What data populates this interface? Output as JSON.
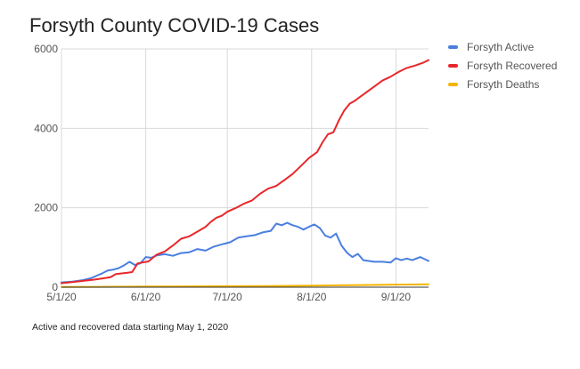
{
  "title": "Forsyth County COVID-19 Cases",
  "footnote": "Active and recovered data starting May 1, 2020",
  "chart_data": {
    "type": "line",
    "title": "Forsyth County COVID-19 Cases",
    "xlabel": "",
    "ylabel": "",
    "x_range": [
      "2020-05-01",
      "2020-09-13"
    ],
    "ylim": [
      0,
      6000
    ],
    "y_ticks": [
      0,
      2000,
      4000,
      6000
    ],
    "y_tick_labels": [
      "0",
      "2000",
      "4000",
      "6000"
    ],
    "x_ticks": [
      "2020-05-01",
      "2020-06-01",
      "2020-07-01",
      "2020-08-01",
      "2020-09-01"
    ],
    "x_tick_labels": [
      "5/1/20",
      "6/1/20",
      "7/1/20",
      "8/1/20",
      "9/1/20"
    ],
    "grid": "vertical and horizontal gridlines",
    "legend_position": "right",
    "series": [
      {
        "name": "Forsyth Active",
        "color": "#4a7fe0",
        "points": [
          [
            "2020-05-01",
            120
          ],
          [
            "2020-05-05",
            140
          ],
          [
            "2020-05-09",
            180
          ],
          [
            "2020-05-12",
            230
          ],
          [
            "2020-05-14",
            290
          ],
          [
            "2020-05-16",
            350
          ],
          [
            "2020-05-18",
            420
          ],
          [
            "2020-05-20",
            440
          ],
          [
            "2020-05-22",
            480
          ],
          [
            "2020-05-24",
            550
          ],
          [
            "2020-05-26",
            640
          ],
          [
            "2020-05-28",
            560
          ],
          [
            "2020-05-30",
            600
          ],
          [
            "2020-06-01",
            760
          ],
          [
            "2020-06-03",
            740
          ],
          [
            "2020-06-05",
            800
          ],
          [
            "2020-06-08",
            830
          ],
          [
            "2020-06-11",
            790
          ],
          [
            "2020-06-14",
            860
          ],
          [
            "2020-06-17",
            880
          ],
          [
            "2020-06-20",
            960
          ],
          [
            "2020-06-23",
            920
          ],
          [
            "2020-06-26",
            1020
          ],
          [
            "2020-06-29",
            1080
          ],
          [
            "2020-07-02",
            1130
          ],
          [
            "2020-07-05",
            1250
          ],
          [
            "2020-07-08",
            1280
          ],
          [
            "2020-07-11",
            1310
          ],
          [
            "2020-07-14",
            1380
          ],
          [
            "2020-07-17",
            1420
          ],
          [
            "2020-07-19",
            1600
          ],
          [
            "2020-07-21",
            1560
          ],
          [
            "2020-07-23",
            1620
          ],
          [
            "2020-07-25",
            1560
          ],
          [
            "2020-07-27",
            1520
          ],
          [
            "2020-07-29",
            1450
          ],
          [
            "2020-07-31",
            1520
          ],
          [
            "2020-08-02",
            1580
          ],
          [
            "2020-08-04",
            1490
          ],
          [
            "2020-08-06",
            1300
          ],
          [
            "2020-08-08",
            1250
          ],
          [
            "2020-08-10",
            1350
          ],
          [
            "2020-08-12",
            1050
          ],
          [
            "2020-08-14",
            870
          ],
          [
            "2020-08-16",
            760
          ],
          [
            "2020-08-18",
            840
          ],
          [
            "2020-08-20",
            680
          ],
          [
            "2020-08-24",
            640
          ],
          [
            "2020-08-27",
            640
          ],
          [
            "2020-08-30",
            620
          ],
          [
            "2020-09-01",
            730
          ],
          [
            "2020-09-03",
            680
          ],
          [
            "2020-09-05",
            720
          ],
          [
            "2020-09-07",
            680
          ],
          [
            "2020-09-10",
            760
          ],
          [
            "2020-09-13",
            660
          ]
        ]
      },
      {
        "name": "Forsyth Recovered",
        "color": "#e8272b",
        "points": [
          [
            "2020-05-01",
            100
          ],
          [
            "2020-05-05",
            130
          ],
          [
            "2020-05-09",
            160
          ],
          [
            "2020-05-13",
            190
          ],
          [
            "2020-05-17",
            230
          ],
          [
            "2020-05-19",
            250
          ],
          [
            "2020-05-21",
            330
          ],
          [
            "2020-05-25",
            360
          ],
          [
            "2020-05-27",
            380
          ],
          [
            "2020-05-29",
            600
          ],
          [
            "2020-06-02",
            650
          ],
          [
            "2020-06-05",
            820
          ],
          [
            "2020-06-08",
            900
          ],
          [
            "2020-06-11",
            1050
          ],
          [
            "2020-06-14",
            1220
          ],
          [
            "2020-06-17",
            1280
          ],
          [
            "2020-06-20",
            1400
          ],
          [
            "2020-06-23",
            1520
          ],
          [
            "2020-06-25",
            1650
          ],
          [
            "2020-06-27",
            1750
          ],
          [
            "2020-06-29",
            1800
          ],
          [
            "2020-07-01",
            1900
          ],
          [
            "2020-07-04",
            1990
          ],
          [
            "2020-07-07",
            2100
          ],
          [
            "2020-07-10",
            2180
          ],
          [
            "2020-07-13",
            2350
          ],
          [
            "2020-07-16",
            2480
          ],
          [
            "2020-07-19",
            2550
          ],
          [
            "2020-07-22",
            2700
          ],
          [
            "2020-07-25",
            2850
          ],
          [
            "2020-07-28",
            3050
          ],
          [
            "2020-07-31",
            3250
          ],
          [
            "2020-08-03",
            3400
          ],
          [
            "2020-08-05",
            3650
          ],
          [
            "2020-08-07",
            3850
          ],
          [
            "2020-08-09",
            3900
          ],
          [
            "2020-08-11",
            4200
          ],
          [
            "2020-08-13",
            4450
          ],
          [
            "2020-08-15",
            4620
          ],
          [
            "2020-08-17",
            4700
          ],
          [
            "2020-08-19",
            4800
          ],
          [
            "2020-08-21",
            4900
          ],
          [
            "2020-08-24",
            5050
          ],
          [
            "2020-08-27",
            5200
          ],
          [
            "2020-08-30",
            5300
          ],
          [
            "2020-09-02",
            5420
          ],
          [
            "2020-09-05",
            5520
          ],
          [
            "2020-09-08",
            5580
          ],
          [
            "2020-09-11",
            5650
          ],
          [
            "2020-09-13",
            5720
          ]
        ]
      },
      {
        "name": "Forsyth Deaths",
        "color": "#f4b400",
        "points": [
          [
            "2020-05-01",
            5
          ],
          [
            "2020-05-15",
            8
          ],
          [
            "2020-06-01",
            15
          ],
          [
            "2020-06-15",
            20
          ],
          [
            "2020-07-01",
            25
          ],
          [
            "2020-07-15",
            30
          ],
          [
            "2020-08-01",
            38
          ],
          [
            "2020-08-15",
            50
          ],
          [
            "2020-09-01",
            65
          ],
          [
            "2020-09-13",
            72
          ]
        ]
      }
    ]
  }
}
